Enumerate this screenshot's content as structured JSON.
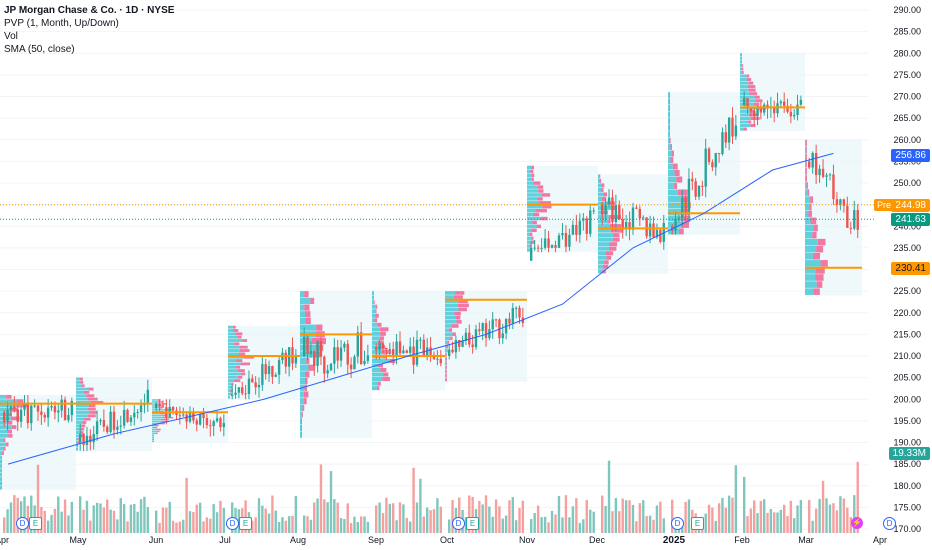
{
  "legend": {
    "symbol": "JP Morgan Chase & Co. · 1D · NYSE",
    "pvp": "PVP (1, Month, Up/Down)",
    "vol": "Vol",
    "sma": "SMA (50, close)"
  },
  "badges": {
    "sma": "256.86",
    "pre_label": "Pre",
    "pre": "244.98",
    "last": "241.63",
    "poc": "230.41",
    "volume": "19.33M"
  },
  "colors": {
    "up": "#26a69a",
    "down": "#ef5350",
    "sma": "#2962ff",
    "poc": "#ff9800",
    "vol_up": "#7fc7bd",
    "vol_down": "#f4a09e"
  },
  "events": [
    "D",
    "E",
    "D",
    "E",
    "D",
    "E",
    "D",
    "E",
    "D"
  ],
  "chart_data": {
    "type": "candlestick",
    "symbol": "JP Morgan Chase & Co.",
    "interval": "1D",
    "exchange": "NYSE",
    "y_ticks": [
      290,
      285,
      280,
      275,
      270,
      265,
      260,
      255,
      250,
      245,
      240,
      235,
      230,
      225,
      220,
      215,
      210,
      205,
      200,
      195,
      190,
      185,
      180,
      175,
      170
    ],
    "ylim": [
      170,
      290
    ],
    "x_ticks": [
      "Apr",
      "May",
      "Jun",
      "Jul",
      "Aug",
      "Sep",
      "Oct",
      "Nov",
      "Dec",
      "2025",
      "Feb",
      "Mar",
      "Apr"
    ],
    "months": [
      {
        "label": "Apr",
        "open": 197,
        "close": 198,
        "high": 201,
        "low": 179
      },
      {
        "label": "May",
        "open": 190,
        "close": 200,
        "high": 205,
        "low": 188
      },
      {
        "label": "Jun",
        "open": 198,
        "close": 194,
        "high": 200,
        "low": 190
      },
      {
        "label": "Jul",
        "open": 201,
        "close": 211,
        "high": 217,
        "low": 200
      },
      {
        "label": "Aug",
        "open": 210,
        "close": 211,
        "high": 225,
        "low": 191
      },
      {
        "label": "Sep",
        "open": 212,
        "close": 210,
        "high": 225,
        "low": 202
      },
      {
        "label": "Oct",
        "open": 210,
        "close": 220,
        "high": 225,
        "low": 204
      },
      {
        "label": "Nov",
        "open": 232,
        "close": 242,
        "high": 254,
        "low": 234
      },
      {
        "label": "Dec",
        "open": 245,
        "close": 238,
        "high": 252,
        "low": 229
      },
      {
        "label": "Jan",
        "open": 240,
        "close": 265,
        "high": 271,
        "low": 238
      },
      {
        "label": "Feb",
        "open": 268,
        "close": 267,
        "high": 280,
        "low": 262
      },
      {
        "label": "Mar",
        "open": 255,
        "close": 241.63,
        "high": 260,
        "low": 224
      }
    ],
    "poc_levels": [
      {
        "month": "Apr",
        "price": 199
      },
      {
        "month": "May",
        "price": 199
      },
      {
        "month": "Jun",
        "price": 197
      },
      {
        "month": "Jul",
        "price": 210
      },
      {
        "month": "Aug",
        "price": 215
      },
      {
        "month": "Sep",
        "price": 210
      },
      {
        "month": "Oct",
        "price": 223
      },
      {
        "month": "Nov",
        "price": 245
      },
      {
        "month": "Dec",
        "price": 239.5
      },
      {
        "month": "Jan",
        "price": 243
      },
      {
        "month": "Feb",
        "price": 267.5
      },
      {
        "month": "Mar",
        "price": 230.41
      }
    ],
    "sma_50": [
      {
        "month": "Apr",
        "value": 185
      },
      {
        "month": "May",
        "value": 192
      },
      {
        "month": "Jun",
        "value": 196
      },
      {
        "month": "Jul",
        "value": 200
      },
      {
        "month": "Aug",
        "value": 205
      },
      {
        "month": "Sep",
        "value": 210
      },
      {
        "month": "Oct",
        "value": 215
      },
      {
        "month": "Nov",
        "value": 222
      },
      {
        "month": "Dec",
        "value": 235
      },
      {
        "month": "Jan",
        "value": 243
      },
      {
        "month": "Feb",
        "value": 253
      },
      {
        "month": "Mar",
        "value": 256.86
      }
    ],
    "last_price": 241.63,
    "pre_market": 244.98,
    "sma_last": 256.86,
    "last_volume": "19.33M"
  }
}
